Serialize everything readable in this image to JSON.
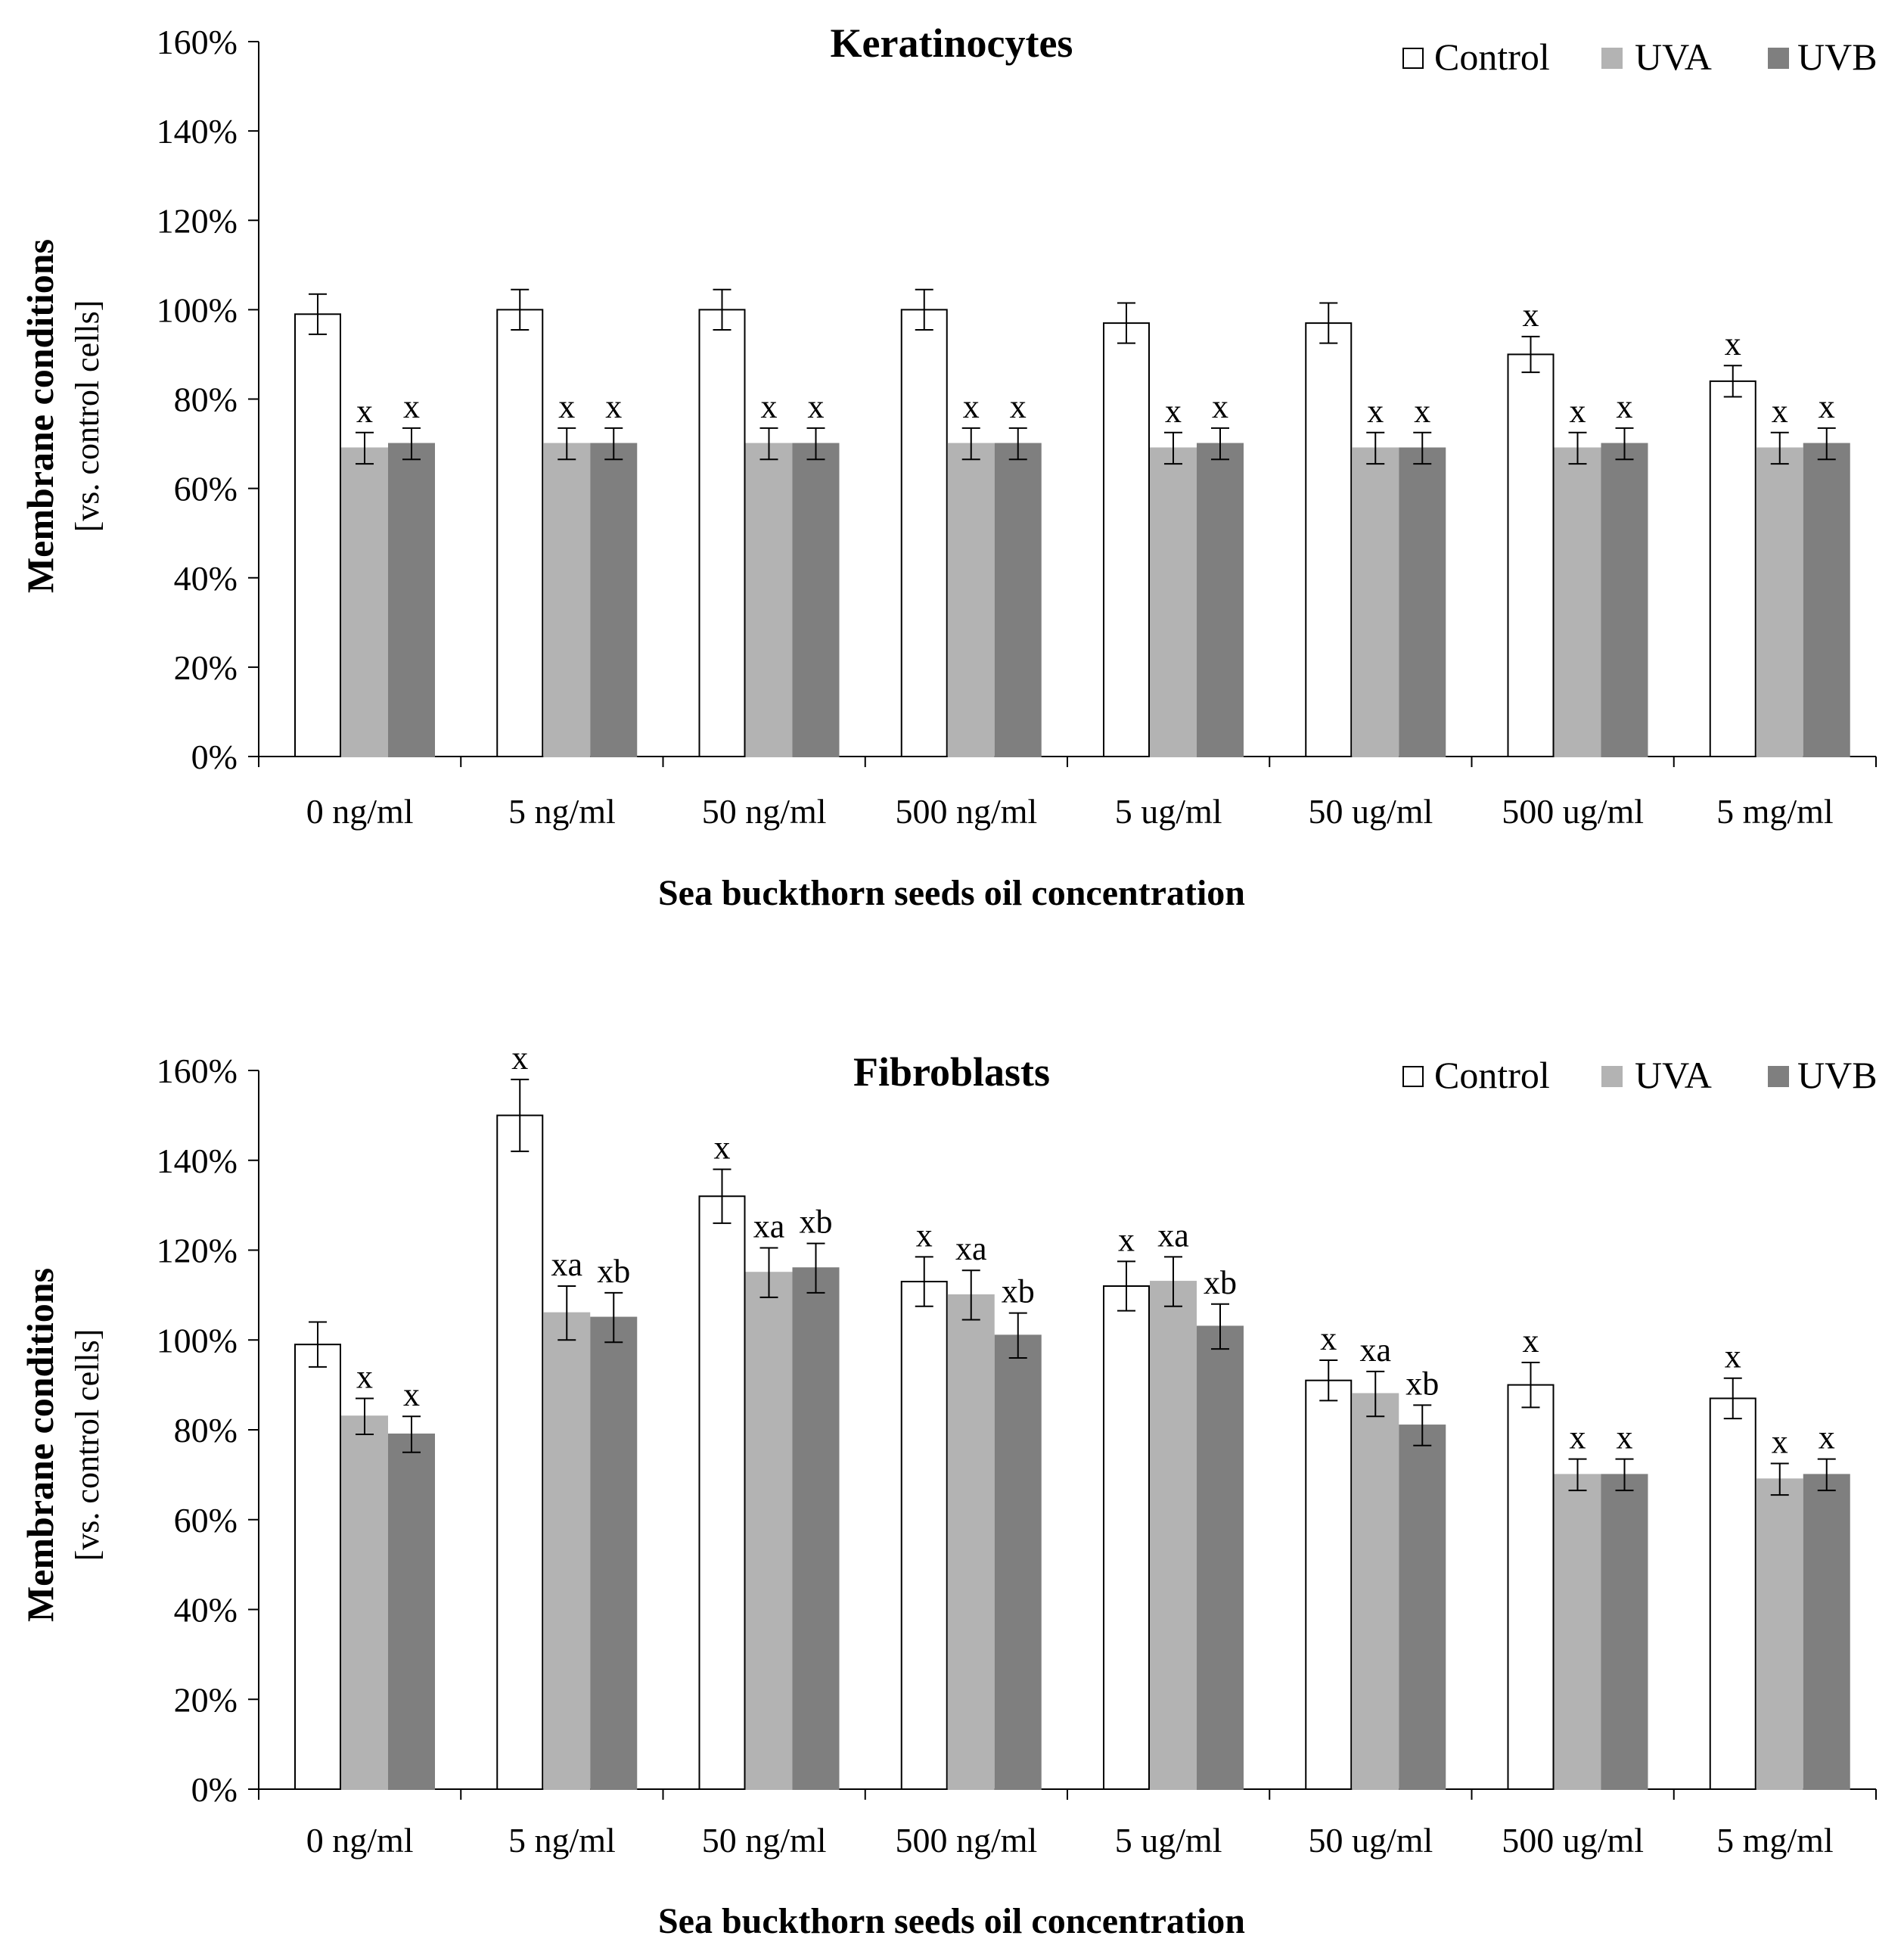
{
  "series_styles": [
    {
      "name": "Control",
      "fill": "#ffffff",
      "stroke": "#000000"
    },
    {
      "name": "UVA",
      "fill": "#b3b3b3",
      "stroke": "#b3b3b3"
    },
    {
      "name": "UVB",
      "fill": "#7f7f7f",
      "stroke": "#7f7f7f"
    }
  ],
  "chart_data": [
    {
      "type": "bar",
      "title": "Keratinocytes",
      "xlabel": "Sea buckthorn  seeds oil concentration",
      "ylabel": "Membrane conditions",
      "ylabel_sub": "[vs. control cells]",
      "ylim": [
        0,
        160
      ],
      "yticks": [
        0,
        20,
        40,
        60,
        80,
        100,
        120,
        140,
        160
      ],
      "ytick_labels": [
        "0%",
        "20%",
        "40%",
        "60%",
        "80%",
        "100%",
        "120%",
        "140%",
        "160%"
      ],
      "legend": [
        "Control",
        "UVA",
        "UVB"
      ],
      "legend_position": "top-right",
      "categories": [
        "0 ng/ml",
        "5 ng/ml",
        "50 ng/ml",
        "500 ng/ml",
        "5 ug/ml",
        "50 ug/ml",
        "500 ug/ml",
        "5 mg/ml"
      ],
      "series": [
        {
          "name": "Control",
          "values": [
            99,
            100,
            100,
            100,
            97,
            97,
            90,
            84
          ],
          "errors": [
            4.5,
            4.5,
            4.5,
            4.5,
            4.5,
            4.5,
            4.0,
            3.5
          ],
          "labels": [
            "",
            "",
            "",
            "",
            "",
            "",
            "x",
            "x"
          ]
        },
        {
          "name": "UVA",
          "values": [
            69,
            70,
            70,
            70,
            69,
            69,
            69,
            69
          ],
          "errors": [
            3.5,
            3.5,
            3.5,
            3.5,
            3.5,
            3.5,
            3.5,
            3.5
          ],
          "labels": [
            "x",
            "x",
            "x",
            "x",
            "x",
            "x",
            "x",
            "x"
          ]
        },
        {
          "name": "UVB",
          "values": [
            70,
            70,
            70,
            70,
            70,
            69,
            70,
            70
          ],
          "errors": [
            3.5,
            3.5,
            3.5,
            3.5,
            3.5,
            3.5,
            3.5,
            3.5
          ],
          "labels": [
            "x",
            "x",
            "x",
            "x",
            "x",
            "x",
            "x",
            "x"
          ]
        }
      ]
    },
    {
      "type": "bar",
      "title": "Fibroblasts",
      "xlabel": "Sea buckthorn  seeds oil concentration",
      "ylabel": "Membrane conditions",
      "ylabel_sub": "[vs. control cells]",
      "ylim": [
        0,
        160
      ],
      "yticks": [
        0,
        20,
        40,
        60,
        80,
        100,
        120,
        140,
        160
      ],
      "ytick_labels": [
        "0%",
        "20%",
        "40%",
        "60%",
        "80%",
        "100%",
        "120%",
        "140%",
        "160%"
      ],
      "legend": [
        "Control",
        "UVA",
        "UVB"
      ],
      "legend_position": "top-right",
      "categories": [
        "0 ng/ml",
        "5 ng/ml",
        "50 ng/ml",
        "500 ng/ml",
        "5 ug/ml",
        "50 ug/ml",
        "500 ug/ml",
        "5 mg/ml"
      ],
      "series": [
        {
          "name": "Control",
          "values": [
            99,
            150,
            132,
            113,
            112,
            91,
            90,
            87
          ],
          "errors": [
            5,
            8,
            6,
            5.5,
            5.5,
            4.5,
            5,
            4.5
          ],
          "labels": [
            "",
            "x",
            "x",
            "x",
            "x",
            "x",
            "x",
            "x"
          ]
        },
        {
          "name": "UVA",
          "values": [
            83,
            106,
            115,
            110,
            113,
            88,
            70,
            69
          ],
          "errors": [
            4,
            6,
            5.5,
            5.5,
            5.5,
            5,
            3.5,
            3.5
          ],
          "labels": [
            "x",
            "xa",
            "xa",
            "xa",
            "xa",
            "xa",
            "x",
            "x"
          ]
        },
        {
          "name": "UVB",
          "values": [
            79,
            105,
            116,
            101,
            103,
            81,
            70,
            70
          ],
          "errors": [
            4,
            5.5,
            5.5,
            5,
            5,
            4.5,
            3.5,
            3.5
          ],
          "labels": [
            "x",
            "xb",
            "xb",
            "xb",
            "xb",
            "xb",
            "x",
            "x"
          ]
        }
      ]
    }
  ]
}
